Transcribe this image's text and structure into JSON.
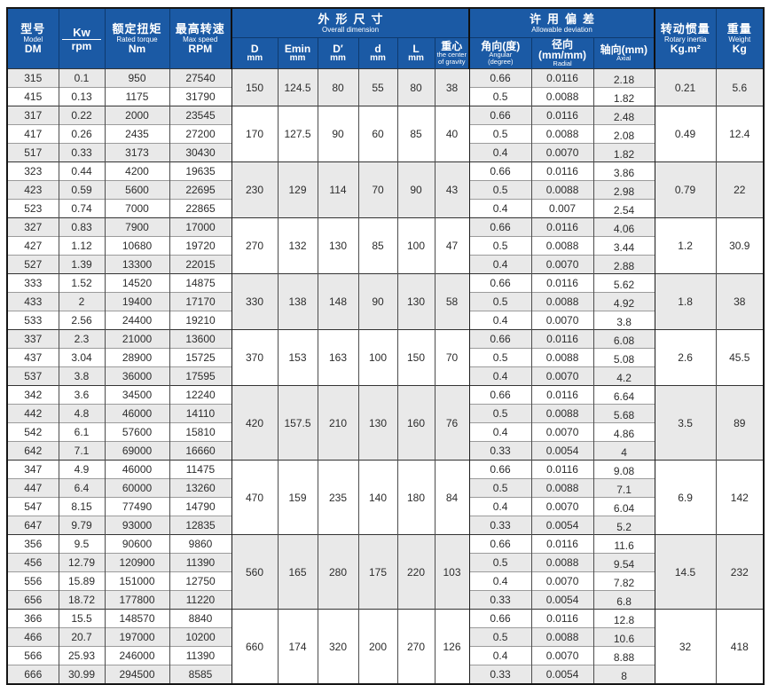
{
  "colors": {
    "header_blue": "#1b5aa5",
    "stripe_gray": "#e9e9e9",
    "grid_dark": "#333333"
  },
  "header": {
    "model": {
      "zh": "型号",
      "en": "Model",
      "sub": "DM"
    },
    "power": {
      "top": "Kw",
      "bottom": "rpm"
    },
    "torque": {
      "zh": "额定扭矩",
      "en": "Rated torque",
      "unit": "Nm"
    },
    "speed": {
      "zh": "最高转速",
      "en": "Max speed",
      "unit": "RPM"
    },
    "dims": {
      "zh": "外形尺寸",
      "en": "Overall dimension",
      "cols": [
        {
          "t": "D",
          "u1": "mm"
        },
        {
          "t": "Emin",
          "u1": "mm"
        },
        {
          "t": "D′",
          "u1": "mm"
        },
        {
          "t": "d",
          "u1": "mm"
        },
        {
          "t": "L",
          "u1": "mm"
        },
        {
          "t": "重心",
          "u1": "the center",
          "u2": "of gravity"
        }
      ]
    },
    "deviation": {
      "zh": "许用偏差",
      "en": "Allowable deviation",
      "cols": [
        {
          "t": "角向(度)",
          "u1": "Angular",
          "u2": "(degree)"
        },
        {
          "t": "径向(mm/mm)",
          "u1": "Radial"
        },
        {
          "t": "轴向(mm)",
          "u1": "Axial"
        }
      ]
    },
    "inertia": {
      "zh": "转动惯量",
      "en": "Rotary inertia",
      "unit": "Kg.m²"
    },
    "weight": {
      "zh": "重量",
      "en": "Weight",
      "unit": "Kg"
    }
  },
  "groups": [
    {
      "rows": [
        [
          "315",
          "0.1",
          "950",
          "27540"
        ],
        [
          "415",
          "0.13",
          "1175",
          "31790"
        ]
      ],
      "dims": [
        "150",
        "124.5",
        "80",
        "55",
        "80",
        "38"
      ],
      "dev": [
        [
          "0.66",
          "0.0116",
          "2.18"
        ],
        [
          "0.5",
          "0.0088",
          "1.82"
        ]
      ],
      "inertia": "0.21",
      "weight": "5.6"
    },
    {
      "rows": [
        [
          "317",
          "0.22",
          "2000",
          "23545"
        ],
        [
          "417",
          "0.26",
          "2435",
          "27200"
        ],
        [
          "517",
          "0.33",
          "3173",
          "30430"
        ]
      ],
      "dims": [
        "170",
        "127.5",
        "90",
        "60",
        "85",
        "40"
      ],
      "dev": [
        [
          "0.66",
          "0.0116",
          "2.48"
        ],
        [
          "0.5",
          "0.0088",
          "2.08"
        ],
        [
          "0.4",
          "0.0070",
          "1.82"
        ]
      ],
      "inertia": "0.49",
      "weight": "12.4"
    },
    {
      "rows": [
        [
          "323",
          "0.44",
          "4200",
          "19635"
        ],
        [
          "423",
          "0.59",
          "5600",
          "22695"
        ],
        [
          "523",
          "0.74",
          "7000",
          "22865"
        ]
      ],
      "dims": [
        "230",
        "129",
        "114",
        "70",
        "90",
        "43"
      ],
      "dev": [
        [
          "0.66",
          "0.0116",
          "3.86"
        ],
        [
          "0.5",
          "0.0088",
          "2.98"
        ],
        [
          "0.4",
          "0.007",
          "2.54"
        ]
      ],
      "inertia": "0.79",
      "weight": "22"
    },
    {
      "rows": [
        [
          "327",
          "0.83",
          "7900",
          "17000"
        ],
        [
          "427",
          "1.12",
          "10680",
          "19720"
        ],
        [
          "527",
          "1.39",
          "13300",
          "22015"
        ]
      ],
      "dims": [
        "270",
        "132",
        "130",
        "85",
        "100",
        "47"
      ],
      "dev": [
        [
          "0.66",
          "0.0116",
          "4.06"
        ],
        [
          "0.5",
          "0.0088",
          "3.44"
        ],
        [
          "0.4",
          "0.0070",
          "2.88"
        ]
      ],
      "inertia": "1.2",
      "weight": "30.9"
    },
    {
      "rows": [
        [
          "333",
          "1.52",
          "14520",
          "14875"
        ],
        [
          "433",
          "2",
          "19400",
          "17170"
        ],
        [
          "533",
          "2.56",
          "24400",
          "19210"
        ]
      ],
      "dims": [
        "330",
        "138",
        "148",
        "90",
        "130",
        "58"
      ],
      "dev": [
        [
          "0.66",
          "0.0116",
          "5.62"
        ],
        [
          "0.5",
          "0.0088",
          "4.92"
        ],
        [
          "0.4",
          "0.0070",
          "3.8"
        ]
      ],
      "inertia": "1.8",
      "weight": "38"
    },
    {
      "rows": [
        [
          "337",
          "2.3",
          "21000",
          "13600"
        ],
        [
          "437",
          "3.04",
          "28900",
          "15725"
        ],
        [
          "537",
          "3.8",
          "36000",
          "17595"
        ]
      ],
      "dims": [
        "370",
        "153",
        "163",
        "100",
        "150",
        "70"
      ],
      "dev": [
        [
          "0.66",
          "0.0116",
          "6.08"
        ],
        [
          "0.5",
          "0.0088",
          "5.08"
        ],
        [
          "0.4",
          "0.0070",
          "4.2"
        ]
      ],
      "inertia": "2.6",
      "weight": "45.5"
    },
    {
      "rows": [
        [
          "342",
          "3.6",
          "34500",
          "12240"
        ],
        [
          "442",
          "4.8",
          "46000",
          "14110"
        ],
        [
          "542",
          "6.1",
          "57600",
          "15810"
        ],
        [
          "642",
          "7.1",
          "69000",
          "16660"
        ]
      ],
      "dims": [
        "420",
        "157.5",
        "210",
        "130",
        "160",
        "76"
      ],
      "dev": [
        [
          "0.66",
          "0.0116",
          "6.64"
        ],
        [
          "0.5",
          "0.0088",
          "5.68"
        ],
        [
          "0.4",
          "0.0070",
          "4.86"
        ],
        [
          "0.33",
          "0.0054",
          "4"
        ]
      ],
      "inertia": "3.5",
      "weight": "89"
    },
    {
      "rows": [
        [
          "347",
          "4.9",
          "46000",
          "11475"
        ],
        [
          "447",
          "6.4",
          "60000",
          "13260"
        ],
        [
          "547",
          "8.15",
          "77490",
          "14790"
        ],
        [
          "647",
          "9.79",
          "93000",
          "12835"
        ]
      ],
      "dims": [
        "470",
        "159",
        "235",
        "140",
        "180",
        "84"
      ],
      "dev": [
        [
          "0.66",
          "0.0116",
          "9.08"
        ],
        [
          "0.5",
          "0.0088",
          "7.1"
        ],
        [
          "0.4",
          "0.0070",
          "6.04"
        ],
        [
          "0.33",
          "0.0054",
          "5.2"
        ]
      ],
      "inertia": "6.9",
      "weight": "142"
    },
    {
      "rows": [
        [
          "356",
          "9.5",
          "90600",
          "9860"
        ],
        [
          "456",
          "12.79",
          "120900",
          "11390"
        ],
        [
          "556",
          "15.89",
          "151000",
          "12750"
        ],
        [
          "656",
          "18.72",
          "177800",
          "11220"
        ]
      ],
      "dims": [
        "560",
        "165",
        "280",
        "175",
        "220",
        "103"
      ],
      "dev": [
        [
          "0.66",
          "0.0116",
          "11.6"
        ],
        [
          "0.5",
          "0.0088",
          "9.54"
        ],
        [
          "0.4",
          "0.0070",
          "7.82"
        ],
        [
          "0.33",
          "0.0054",
          "6.8"
        ]
      ],
      "inertia": "14.5",
      "weight": "232"
    },
    {
      "rows": [
        [
          "366",
          "15.5",
          "148570",
          "8840"
        ],
        [
          "466",
          "20.7",
          "197000",
          "10200"
        ],
        [
          "566",
          "25.93",
          "246000",
          "11390"
        ],
        [
          "666",
          "30.99",
          "294500",
          "8585"
        ]
      ],
      "dims": [
        "660",
        "174",
        "320",
        "200",
        "270",
        "126"
      ],
      "dev": [
        [
          "0.66",
          "0.0116",
          "12.8"
        ],
        [
          "0.5",
          "0.0088",
          "10.6"
        ],
        [
          "0.4",
          "0.0070",
          "8.88"
        ],
        [
          "0.33",
          "0.0054",
          "8"
        ]
      ],
      "inertia": "32",
      "weight": "418"
    }
  ]
}
